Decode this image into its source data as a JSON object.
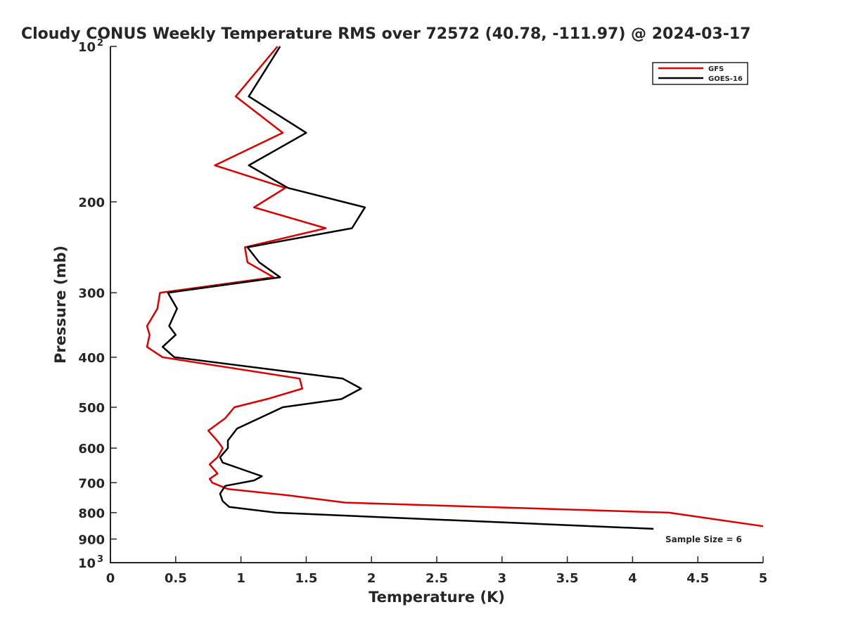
{
  "chart_data": {
    "type": "line",
    "title": "Cloudy CONUS Weekly Temperature RMS over 72572 (40.78, -111.97) @ 2024-03-17",
    "xlabel": "Temperature (K)",
    "ylabel": "Pressure (mb)",
    "xlim": [
      0,
      5
    ],
    "ylim": [
      100,
      1000
    ],
    "yscale": "log",
    "y_reversed": true,
    "x_ticks": [
      0,
      0.5,
      1,
      1.5,
      2,
      2.5,
      3,
      3.5,
      4,
      4.5,
      5
    ],
    "x_tick_labels": [
      "0",
      "0.5",
      "1",
      "1.5",
      "2",
      "2.5",
      "3",
      "3.5",
      "4",
      "4.5",
      "5"
    ],
    "y_ticks": [
      {
        "value": 100,
        "base": "10",
        "exp": "2"
      },
      {
        "value": 200,
        "label": "200"
      },
      {
        "value": 300,
        "label": "300"
      },
      {
        "value": 400,
        "label": "400"
      },
      {
        "value": 500,
        "label": "500"
      },
      {
        "value": 600,
        "label": "600"
      },
      {
        "value": 700,
        "label": "700"
      },
      {
        "value": 800,
        "label": "800"
      },
      {
        "value": 900,
        "label": "900"
      },
      {
        "value": 1000,
        "base": "10",
        "exp": "3"
      }
    ],
    "legend": {
      "position": "top-right",
      "entries": [
        "GFS",
        "GOES-16"
      ]
    },
    "annotation": "Sample Size = 6",
    "series": [
      {
        "name": "GFS",
        "color": "#dd0000",
        "points": [
          [
            1.28,
            100
          ],
          [
            0.96,
            125
          ],
          [
            1.32,
            147
          ],
          [
            0.8,
            170
          ],
          [
            1.34,
            188
          ],
          [
            1.1,
            205
          ],
          [
            1.65,
            225
          ],
          [
            1.03,
            245
          ],
          [
            1.05,
            262
          ],
          [
            1.25,
            280
          ],
          [
            0.38,
            300
          ],
          [
            0.36,
            322
          ],
          [
            0.28,
            348
          ],
          [
            0.3,
            362
          ],
          [
            0.28,
            382
          ],
          [
            0.4,
            400
          ],
          [
            1.45,
            440
          ],
          [
            1.47,
            460
          ],
          [
            1.2,
            482
          ],
          [
            0.95,
            500
          ],
          [
            0.88,
            525
          ],
          [
            0.75,
            555
          ],
          [
            0.83,
            585
          ],
          [
            0.86,
            600
          ],
          [
            0.82,
            625
          ],
          [
            0.76,
            645
          ],
          [
            0.82,
            672
          ],
          [
            0.76,
            688
          ],
          [
            0.78,
            700
          ],
          [
            0.9,
            720
          ],
          [
            1.35,
            740
          ],
          [
            1.8,
            765
          ],
          [
            4.28,
            800
          ],
          [
            5.0,
            850
          ]
        ]
      },
      {
        "name": "GOES-16",
        "color": "#000000",
        "points": [
          [
            1.3,
            100
          ],
          [
            1.06,
            125
          ],
          [
            1.5,
            147
          ],
          [
            1.06,
            170
          ],
          [
            1.36,
            188
          ],
          [
            1.95,
            205
          ],
          [
            1.85,
            225
          ],
          [
            1.05,
            245
          ],
          [
            1.14,
            262
          ],
          [
            1.3,
            280
          ],
          [
            0.44,
            300
          ],
          [
            0.51,
            322
          ],
          [
            0.45,
            348
          ],
          [
            0.5,
            362
          ],
          [
            0.4,
            382
          ],
          [
            0.49,
            400
          ],
          [
            1.78,
            440
          ],
          [
            1.92,
            460
          ],
          [
            1.77,
            482
          ],
          [
            1.32,
            500
          ],
          [
            0.97,
            550
          ],
          [
            0.9,
            580
          ],
          [
            0.9,
            600
          ],
          [
            0.84,
            625
          ],
          [
            0.86,
            640
          ],
          [
            1.05,
            665
          ],
          [
            1.16,
            680
          ],
          [
            1.1,
            693
          ],
          [
            0.88,
            710
          ],
          [
            0.84,
            735
          ],
          [
            0.86,
            760
          ],
          [
            0.91,
            780
          ],
          [
            1.27,
            800
          ],
          [
            4.16,
            860
          ]
        ]
      }
    ]
  }
}
